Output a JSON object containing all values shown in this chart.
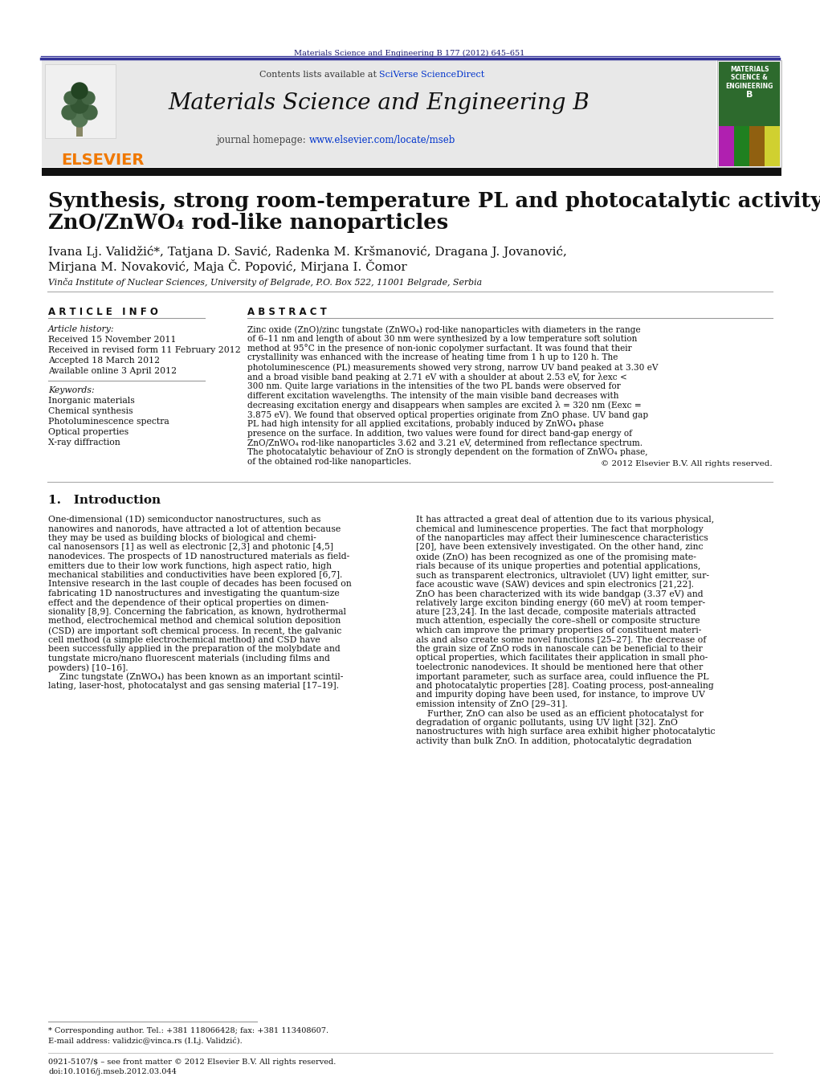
{
  "bg_color": "#ffffff",
  "header_bar_color": "#1a1a6e",
  "journal_header_bg": "#e8e8e8",
  "elsevier_orange": "#f07800",
  "link_color": "#0033cc",
  "sciverse_color": "#0033cc",
  "dark_bar_color": "#1a1a1a",
  "top_journal_ref": "Materials Science and Engineering B 177 (2012) 645–651",
  "contents_line": "Contents lists available at SciVerse ScienceDirect",
  "journal_name": "Materials Science and Engineering B",
  "journal_homepage": "journal homepage: www.elsevier.com/locate/mseb",
  "paper_title_line1": "Synthesis, strong room-temperature PL and photocatalytic activity of",
  "paper_title_line2": "ZnO/ZnWO₄ rod-like nanoparticles",
  "authors_line1": "Ivana Lj. Validžić*, Tatjana D. Savić, Radenka M. Kršmanović, Dragana J. Jovanović,",
  "authors_line2": "Mirjana M. Novaković, Maja Č. Popović, Mirjana I. Čomor",
  "affiliation": "Vinča Institute of Nuclear Sciences, University of Belgrade, P.O. Box 522, 11001 Belgrade, Serbia",
  "article_info_header": "A R T I C L E   I N F O",
  "abstract_header": "A B S T R A C T",
  "article_history_label": "Article history:",
  "received1": "Received 15 November 2011",
  "received2": "Received in revised form 11 February 2012",
  "accepted": "Accepted 18 March 2012",
  "available": "Available online 3 April 2012",
  "keywords_label": "Keywords:",
  "keywords": [
    "Inorganic materials",
    "Chemical synthesis",
    "Photoluminescence spectra",
    "Optical properties",
    "X-ray diffraction"
  ],
  "abstract_text": "Zinc oxide (ZnO)/zinc tungstate (ZnWO₄) rod-like nanoparticles with diameters in the range of 6–11 nm and length of about 30 nm were synthesized by a low temperature soft solution method at 95°C in the presence of non-ionic copolymer surfactant. It was found that their crystallinity was enhanced with the increase of heating time from 1 h up to 120 h. The photoluminescence (PL) measurements showed very strong, narrow UV band peaked at 3.30 eV and a broad visible band peaking at 2.71 eV with a shoulder at about 2.53 eV, for λexc < 300 nm. Quite large variations in the intensities of the two PL bands were observed for different excitation wavelengths. The intensity of the main visible band decreases with decreasing excitation energy and disappears when samples are excited λ = 320 nm (Eexc = 3.875 eV). We found that observed optical properties originate from ZnO phase. UV band gap PL had high intensity for all applied excitations, probably induced by ZnWO₄ phase presence on the surface. In addition, two values were found for direct band-gap energy of ZnO/ZnWO₄ rod-like nanoparticles 3.62 and 3.21 eV, determined from reflectance spectrum. The photocatalytic behaviour of ZnO is strongly dependent on the formation of ZnWO₄ phase, of the obtained rod-like nanoparticles.",
  "copyright": "© 2012 Elsevier B.V. All rights reserved.",
  "section1_title": "1.   Introduction",
  "footnote1": "* Corresponding author. Tel.: +381 118066428; fax: +381 113408607.",
  "footnote2": "E-mail address: validzic@vinca.rs (I.Lj. Validzić).",
  "footer1": "0921-5107/$ – see front matter © 2012 Elsevier B.V. All rights reserved.",
  "footer2": "doi:10.1016/j.mseb.2012.03.044",
  "col1_lines": [
    "One-dimensional (1D) semiconductor nanostructures, such as",
    "nanowires and nanorods, have attracted a lot of attention because",
    "they may be used as building blocks of biological and chemi-",
    "cal nanosensors [1] as well as electronic [2,3] and photonic [4,5]",
    "nanodevices. The prospects of 1D nanostructured materials as field-",
    "emitters due to their low work functions, high aspect ratio, high",
    "mechanical stabilities and conductivities have been explored [6,7].",
    "Intensive research in the last couple of decades has been focused on",
    "fabricating 1D nanostructures and investigating the quantum-size",
    "effect and the dependence of their optical properties on dimen-",
    "sionality [8,9]. Concerning the fabrication, as known, hydrothermal",
    "method, electrochemical method and chemical solution deposition",
    "(CSD) are important soft chemical process. In recent, the galvanic",
    "cell method (a simple electrochemical method) and CSD have",
    "been successfully applied in the preparation of the molybdate and",
    "tungstate micro/nano fluorescent materials (including films and",
    "powders) [10–16].",
    "    Zinc tungstate (ZnWO₄) has been known as an important scintil-",
    "lating, laser-host, photocatalyst and gas sensing material [17–19]."
  ],
  "col2_lines": [
    "It has attracted a great deal of attention due to its various physical,",
    "chemical and luminescence properties. The fact that morphology",
    "of the nanoparticles may affect their luminescence characteristics",
    "[20], have been extensively investigated. On the other hand, zinc",
    "oxide (ZnO) has been recognized as one of the promising mate-",
    "rials because of its unique properties and potential applications,",
    "such as transparent electronics, ultraviolet (UV) light emitter, sur-",
    "face acoustic wave (SAW) devices and spin electronics [21,22].",
    "ZnO has been characterized with its wide bandgap (3.37 eV) and",
    "relatively large exciton binding energy (60 meV) at room temper-",
    "ature [23,24]. In the last decade, composite materials attracted",
    "much attention, especially the core–shell or composite structure",
    "which can improve the primary properties of constituent materi-",
    "als and also create some novel functions [25–27]. The decrease of",
    "the grain size of ZnO rods in nanoscale can be beneficial to their",
    "optical properties, which facilitates their application in small pho-",
    "toelectronic nanodevices. It should be mentioned here that other",
    "important parameter, such as surface area, could influence the PL",
    "and photocatalytic properties [28]. Coating process, post-annealing",
    "and impurity doping have been used, for instance, to improve UV",
    "emission intensity of ZnO [29–31].",
    "    Further, ZnO can also be used as an efficient photocatalyst for",
    "degradation of organic pollutants, using UV light [32]. ZnO",
    "nanostructures with high surface area exhibit higher photocatalytic",
    "activity than bulk ZnO. In addition, photocatalytic degradation"
  ]
}
